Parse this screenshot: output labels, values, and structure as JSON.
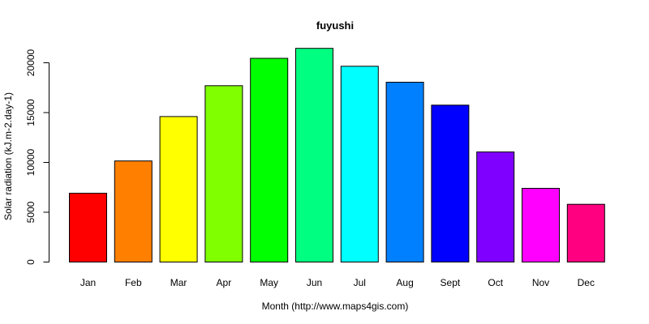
{
  "chart_data": {
    "type": "bar",
    "title": "fuyushi",
    "xlabel": "Month (http://www.maps4gis.com)",
    "ylabel": "Solar radiation (kJ.m-2.day-1)",
    "categories": [
      "Jan",
      "Feb",
      "Mar",
      "Apr",
      "May",
      "Jun",
      "Jul",
      "Aug",
      "Sept",
      "Oct",
      "Nov",
      "Dec"
    ],
    "values": [
      6900,
      10150,
      14600,
      17700,
      20450,
      21450,
      19650,
      18050,
      15750,
      11050,
      7400,
      5800
    ],
    "colors": [
      "#FF0000",
      "#FF8000",
      "#FFFF00",
      "#80FF00",
      "#00FF00",
      "#00FF80",
      "#00FFFF",
      "#0080FF",
      "#0000FF",
      "#8000FF",
      "#FF00FF",
      "#FF0080"
    ],
    "ylim": [
      0,
      22000
    ],
    "yticks": [
      0,
      5000,
      10000,
      15000,
      20000
    ],
    "grid": false,
    "legend": "none"
  }
}
